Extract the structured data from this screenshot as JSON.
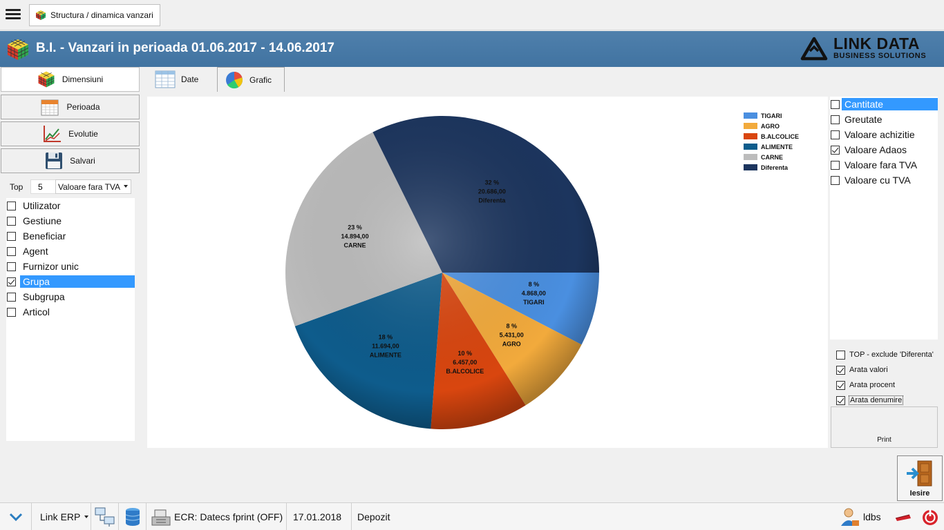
{
  "window_tab": {
    "label": "Structura / dinamica vanzari"
  },
  "header": {
    "title": "B.I. - Vanzari in perioada 01.06.2017 - 14.06.2017",
    "logo_main": "LINK DATA",
    "logo_sub": "BUSINESS SOLUTIONS",
    "bg_color": "#4a7aa8"
  },
  "sidebar": {
    "buttons": [
      {
        "label": "Dimensiuni",
        "icon": "rubik-cube-icon",
        "active": true
      },
      {
        "label": "Perioada",
        "icon": "calendar-icon",
        "active": false
      },
      {
        "label": "Evolutie",
        "icon": "trend-chart-icon",
        "active": false
      },
      {
        "label": "Salvari",
        "icon": "floppy-disk-icon",
        "active": false
      }
    ],
    "top_label": "Top",
    "top_value": "5",
    "top_measure": "Valoare fara TVA",
    "dimensions": [
      {
        "label": "Utilizator",
        "checked": false,
        "selected": false
      },
      {
        "label": "Gestiune",
        "checked": false,
        "selected": false
      },
      {
        "label": "Beneficiar",
        "checked": false,
        "selected": false
      },
      {
        "label": "Agent",
        "checked": false,
        "selected": false
      },
      {
        "label": "Furnizor unic",
        "checked": false,
        "selected": false
      },
      {
        "label": "Grupa",
        "checked": true,
        "selected": true
      },
      {
        "label": "Subgrupa",
        "checked": false,
        "selected": false
      },
      {
        "label": "Articol",
        "checked": false,
        "selected": false
      }
    ]
  },
  "view_tabs": {
    "date_label": "Date",
    "grafic_label": "Grafic"
  },
  "chart_data": {
    "type": "pie",
    "categories": [
      "TIGARI",
      "AGRO",
      "B.ALCOLICE",
      "ALIMENTE",
      "CARNE",
      "Diferenta"
    ],
    "values": [
      4868.0,
      5431.0,
      6457.0,
      11694.0,
      14894.0,
      20686.0
    ],
    "value_labels": [
      "4.868,00",
      "5.431,00",
      "6.457,00",
      "11.694,00",
      "14.894,00",
      "20.686,00"
    ],
    "percent_labels": [
      "8 %",
      "8 %",
      "10 %",
      "18 %",
      "23 %",
      "32 %"
    ],
    "colors": [
      "#4a8fe0",
      "#f2aa3c",
      "#d9460f",
      "#0e5c8c",
      "#bcbcbc",
      "#1c355e"
    ],
    "legend_position": "top-right",
    "show_values": true,
    "show_percent": true,
    "show_names": true
  },
  "measures": [
    {
      "label": "Cantitate",
      "checked": false,
      "selected": true
    },
    {
      "label": "Greutate",
      "checked": false,
      "selected": false
    },
    {
      "label": "Valoare achizitie",
      "checked": false,
      "selected": false
    },
    {
      "label": "Valoare Adaos",
      "checked": true,
      "selected": false
    },
    {
      "label": "Valoare fara TVA",
      "checked": false,
      "selected": false
    },
    {
      "label": "Valoare cu TVA",
      "checked": false,
      "selected": false
    }
  ],
  "options": [
    {
      "label": "TOP - exclude 'Diferenta'",
      "checked": false
    },
    {
      "label": "Arata valori",
      "checked": true
    },
    {
      "label": "Arata procent",
      "checked": true
    },
    {
      "label": "Arata denumire",
      "checked": true
    }
  ],
  "print_label": "Print",
  "exit_label": "Iesire",
  "status": {
    "app": "Link ERP",
    "ecr": "ECR: Datecs fprint (OFF)",
    "date": "17.01.2018",
    "location": "Depozit",
    "user": "ldbs"
  }
}
